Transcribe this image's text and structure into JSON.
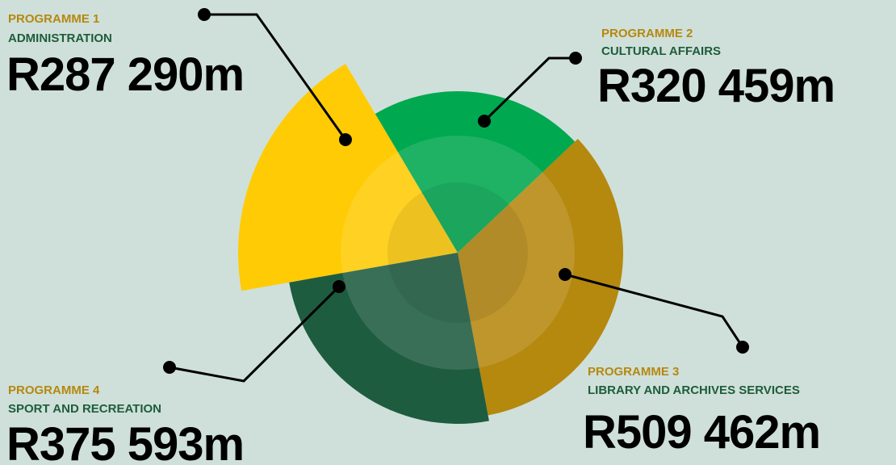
{
  "chart_data": {
    "type": "pie",
    "categories": [
      "PROGRAMME 1",
      "PROGRAMME 2",
      "PROGRAMME 3",
      "PROGRAMME 4"
    ],
    "descriptions": [
      "ADMINISTRATION",
      "CULTURAL AFFAIRS",
      "LIBRARY AND ARCHIVES SERVICES",
      "SPORT AND RECREATION"
    ],
    "values": [
      287290,
      320459,
      509462,
      375593
    ],
    "value_labels": [
      "R287 290m",
      "R320 459m",
      "R509 462m",
      "R375 593m"
    ],
    "colors": [
      "#ffcb05",
      "#00a84f",
      "#b5880e",
      "#1e5c3f"
    ]
  }
}
